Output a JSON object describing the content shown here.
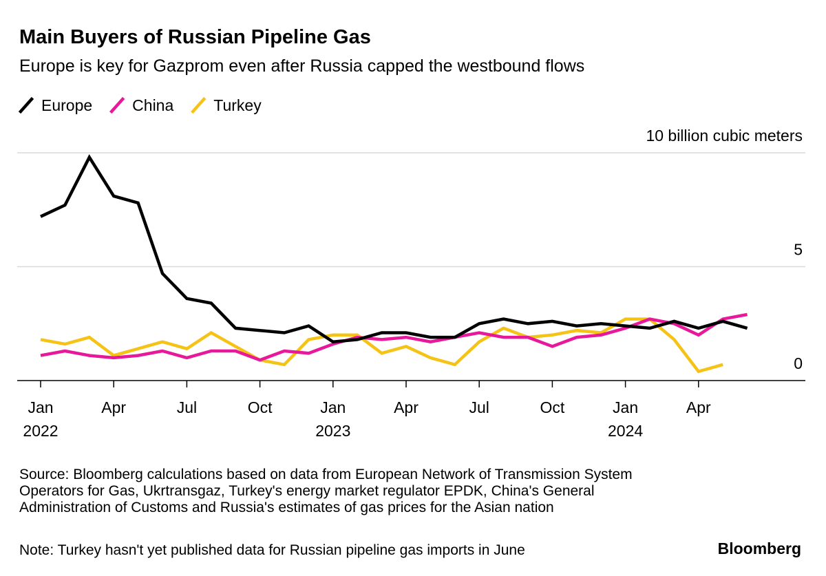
{
  "chart_data": {
    "type": "line",
    "title": "Main Buyers of Russian Pipeline Gas",
    "subtitle": "Europe is key for Gazprom even after Russia capped the westbound flows",
    "x": [
      "2022-01",
      "2022-02",
      "2022-03",
      "2022-04",
      "2022-05",
      "2022-06",
      "2022-07",
      "2022-08",
      "2022-09",
      "2022-10",
      "2022-11",
      "2022-12",
      "2023-01",
      "2023-02",
      "2023-03",
      "2023-04",
      "2023-05",
      "2023-06",
      "2023-07",
      "2023-08",
      "2023-09",
      "2023-10",
      "2023-11",
      "2023-12",
      "2024-01",
      "2024-02",
      "2024-03",
      "2024-04",
      "2024-05",
      "2024-06"
    ],
    "xticks": [
      {
        "value": "2022-01",
        "label": "Jan 2022"
      },
      {
        "value": "2022-04",
        "label": "Apr"
      },
      {
        "value": "2022-07",
        "label": "Jul"
      },
      {
        "value": "2022-10",
        "label": "Oct"
      },
      {
        "value": "2023-01",
        "label": "Jan 2023"
      },
      {
        "value": "2023-04",
        "label": "Apr"
      },
      {
        "value": "2023-07",
        "label": "Jul"
      },
      {
        "value": "2023-10",
        "label": "Oct"
      },
      {
        "value": "2024-01",
        "label": "Jan 2024"
      },
      {
        "value": "2024-04",
        "label": "Apr"
      }
    ],
    "ylim": [
      0,
      10
    ],
    "yticks": [
      0,
      5,
      {
        "value": 10,
        "label": "10 billion cubic meters"
      }
    ],
    "grid": true,
    "series": [
      {
        "name": "Europe",
        "color": "#000000",
        "values": [
          7.2,
          7.7,
          9.8,
          8.1,
          7.8,
          4.7,
          3.6,
          3.4,
          2.3,
          2.2,
          2.1,
          2.4,
          1.7,
          1.8,
          2.1,
          2.1,
          1.9,
          1.9,
          2.5,
          2.7,
          2.5,
          2.6,
          2.4,
          2.5,
          2.4,
          2.3,
          2.6,
          2.3,
          2.6,
          2.3
        ]
      },
      {
        "name": "China",
        "color": "#e8189a",
        "values": [
          1.1,
          1.3,
          1.1,
          1.0,
          1.1,
          1.3,
          1.0,
          1.3,
          1.3,
          0.9,
          1.3,
          1.2,
          1.6,
          1.9,
          1.8,
          1.9,
          1.7,
          1.9,
          2.1,
          1.9,
          1.9,
          1.5,
          1.9,
          2.0,
          2.3,
          2.7,
          2.5,
          2.0,
          2.7,
          2.9
        ]
      },
      {
        "name": "Turkey",
        "color": "#f5c316",
        "values": [
          1.8,
          1.6,
          1.9,
          1.1,
          1.4,
          1.7,
          1.4,
          2.1,
          1.5,
          0.9,
          0.7,
          1.8,
          2.0,
          2.0,
          1.2,
          1.5,
          1.0,
          0.7,
          1.7,
          2.3,
          1.9,
          2.0,
          2.2,
          2.1,
          2.7,
          2.7,
          1.8,
          0.4,
          0.7,
          null
        ]
      }
    ],
    "source": "Source: Bloomberg calculations based on data from European Network of Transmission System Operators for Gas, Ukrtransgaz, Turkey's energy market regulator EPDK, China's General Administration of Customs and Russia's estimates of gas prices for the Asian nation",
    "note": "Note: Turkey hasn't yet published data for Russian pipeline gas imports in June",
    "brand": "Bloomberg"
  }
}
